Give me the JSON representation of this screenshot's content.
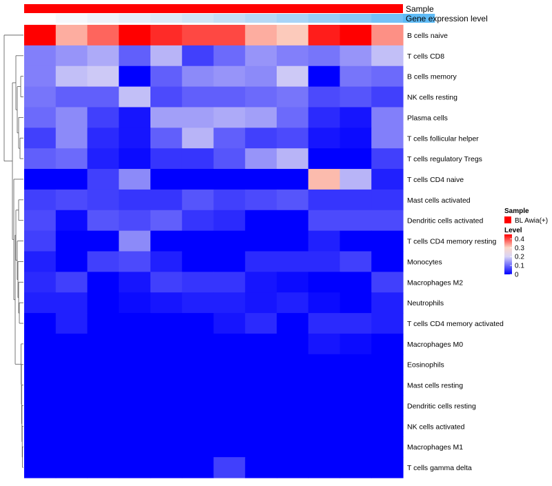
{
  "chart_data": {
    "type": "heatmap",
    "annotation_tracks": [
      {
        "name": "Sample",
        "color": "#ff0000"
      },
      {
        "name": "Gene expression level",
        "colors": [
          "#ffffff",
          "#f6f8fc",
          "#eef2fa",
          "#e5edf8",
          "#dce9f7",
          "#d0e4f6",
          "#c4def6",
          "#b6d9f6",
          "#a8d4f7",
          "#98cef7",
          "#87c8f7",
          "#74c1f7",
          "#5fbbf6"
        ]
      }
    ],
    "rows": [
      "B cells naive",
      "T cells CD8",
      "B cells memory",
      "NK cells resting",
      "Plasma cells",
      "T cells follicular helper",
      "T cells regulatory  Tregs",
      "T cells CD4 naive",
      "Mast cells activated",
      "Dendritic cells activated",
      "T cells CD4 memory resting",
      "Monocytes",
      "Macrophages M2",
      "Neutrophils",
      "T cells CD4 memory activated",
      "Macrophages M0",
      "Eosinophils",
      "Mast cells resting",
      "Dendritic cells resting",
      "NK cells activated",
      "Macrophages M1",
      "T cells gamma delta"
    ],
    "values": [
      [
        0.45,
        0.33,
        0.38,
        0.45,
        0.42,
        0.4,
        0.4,
        0.33,
        0.31,
        0.43,
        0.45,
        0.35
      ],
      [
        0.12,
        0.14,
        0.16,
        0.09,
        0.17,
        0.06,
        0.1,
        0.14,
        0.12,
        0.11,
        0.14,
        0.18
      ],
      [
        0.12,
        0.18,
        0.19,
        0.0,
        0.09,
        0.13,
        0.14,
        0.13,
        0.19,
        0.0,
        0.11,
        0.1
      ],
      [
        0.11,
        0.09,
        0.09,
        0.18,
        0.07,
        0.09,
        0.09,
        0.1,
        0.11,
        0.07,
        0.08,
        0.06
      ],
      [
        0.1,
        0.13,
        0.06,
        0.02,
        0.15,
        0.15,
        0.16,
        0.15,
        0.1,
        0.04,
        0.02,
        0.12
      ],
      [
        0.06,
        0.13,
        0.04,
        0.02,
        0.09,
        0.17,
        0.09,
        0.06,
        0.07,
        0.02,
        0.01,
        0.12
      ],
      [
        0.09,
        0.1,
        0.03,
        0.01,
        0.05,
        0.05,
        0.08,
        0.14,
        0.17,
        0.0,
        0.0,
        0.06
      ],
      [
        0.0,
        0.0,
        0.06,
        0.13,
        0.0,
        0.0,
        0.0,
        0.0,
        0.0,
        0.32,
        0.17,
        0.03
      ],
      [
        0.06,
        0.07,
        0.06,
        0.05,
        0.05,
        0.08,
        0.06,
        0.07,
        0.08,
        0.05,
        0.05,
        0.05
      ],
      [
        0.07,
        0.01,
        0.08,
        0.07,
        0.09,
        0.05,
        0.04,
        0.0,
        0.0,
        0.07,
        0.07,
        0.07
      ],
      [
        0.06,
        0.0,
        0.0,
        0.13,
        0.0,
        0.0,
        0.0,
        0.0,
        0.0,
        0.03,
        0.0,
        0.0
      ],
      [
        0.03,
        0.0,
        0.06,
        0.07,
        0.03,
        0.0,
        0.0,
        0.04,
        0.04,
        0.04,
        0.06,
        0.0
      ],
      [
        0.04,
        0.06,
        0.0,
        0.02,
        0.06,
        0.05,
        0.05,
        0.02,
        0.01,
        0.0,
        0.0,
        0.06
      ],
      [
        0.03,
        0.03,
        0.0,
        0.01,
        0.02,
        0.03,
        0.03,
        0.02,
        0.03,
        0.01,
        0.0,
        0.03
      ],
      [
        0.0,
        0.03,
        0.0,
        0.0,
        0.0,
        0.0,
        0.02,
        0.04,
        0.0,
        0.04,
        0.04,
        0.03
      ],
      [
        0.0,
        0.0,
        0.0,
        0.0,
        0.0,
        0.0,
        0.0,
        0.0,
        0.0,
        0.02,
        0.01,
        0.0
      ],
      [
        0.0,
        0.0,
        0.0,
        0.0,
        0.0,
        0.0,
        0.0,
        0.0,
        0.0,
        0.0,
        0.0,
        0.0
      ],
      [
        0.0,
        0.0,
        0.0,
        0.0,
        0.0,
        0.0,
        0.0,
        0.0,
        0.0,
        0.0,
        0.0,
        0.0
      ],
      [
        0.0,
        0.0,
        0.0,
        0.0,
        0.0,
        0.0,
        0.0,
        0.0,
        0.0,
        0.0,
        0.0,
        0.0
      ],
      [
        0.0,
        0.0,
        0.0,
        0.0,
        0.0,
        0.0,
        0.0,
        0.0,
        0.0,
        0.0,
        0.0,
        0.0
      ],
      [
        0.0,
        0.0,
        0.0,
        0.0,
        0.0,
        0.0,
        0.0,
        0.0,
        0.0,
        0.0,
        0.0,
        0.0
      ],
      [
        0.0,
        0.0,
        0.0,
        0.0,
        0.0,
        0.0,
        0.06,
        0.0,
        0.0,
        0.0,
        0.0,
        0.0
      ]
    ],
    "color_scale": {
      "stops": [
        {
          "value": 0.0,
          "color": "#0000ff"
        },
        {
          "value": 0.2,
          "color": "#d8d4f6"
        },
        {
          "value": 0.3,
          "color": "#fcd8c8"
        },
        {
          "value": 0.45,
          "color": "#ff0000"
        }
      ]
    },
    "legend": {
      "sample_title": "Sample",
      "sample_entry": "BL Awia(+)",
      "sample_color": "#ff0000",
      "level_title": "Level",
      "level_ticks": [
        0,
        0.1,
        0.2,
        0.3,
        0.4
      ],
      "level_range": [
        0,
        0.45
      ],
      "placement": "right"
    },
    "dendrogram": "rows"
  }
}
